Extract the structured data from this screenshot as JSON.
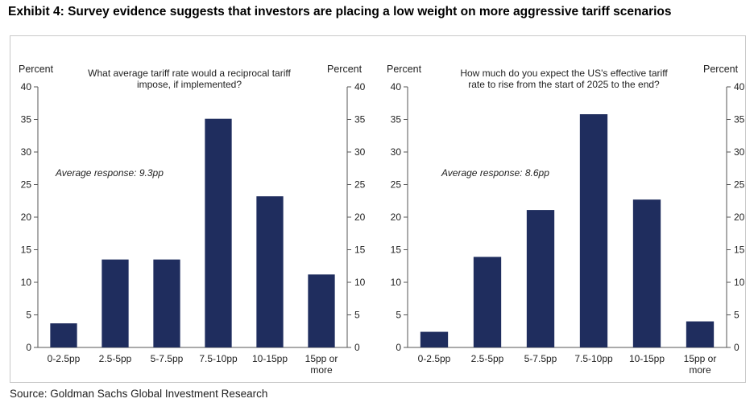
{
  "header": {
    "title": "Exhibit 4: Survey evidence suggests that investors are placing a low weight on more aggressive tariff scenarios"
  },
  "footer": {
    "source": "Source: Goldman Sachs Global Investment Research"
  },
  "colors": {
    "bar": "#1f2d5e",
    "axis": "#555555"
  },
  "chart_data": [
    {
      "type": "bar",
      "title": "What average tariff rate would a reciprocal tariff impose, if implemented?",
      "title_lines": [
        "What average tariff rate would a reciprocal tariff",
        "impose, if implemented?"
      ],
      "categories": [
        "0-2.5pp",
        "2.5-5pp",
        "5-7.5pp",
        "7.5-10pp",
        "10-15pp",
        "15pp or more"
      ],
      "category_lines": [
        [
          "0-2.5pp"
        ],
        [
          "2.5-5pp"
        ],
        [
          "5-7.5pp"
        ],
        [
          "7.5-10pp"
        ],
        [
          "10-15pp"
        ],
        [
          "15pp or",
          "more"
        ]
      ],
      "values": [
        3.7,
        13.5,
        13.5,
        35.1,
        23.2,
        11.2
      ],
      "ylabel_left": "Percent",
      "ylabel_right": "Percent",
      "ylim": [
        0,
        40
      ],
      "yticks": [
        0,
        5,
        10,
        15,
        20,
        25,
        30,
        35,
        40
      ],
      "annotation": "Average response:  9.3pp"
    },
    {
      "type": "bar",
      "title": "How much do you expect the US's effective tariff rate to rise from the start of 2025 to the end?",
      "title_lines": [
        "How much do you expect the US's effective tariff",
        "rate to rise from the start of 2025 to the end?"
      ],
      "categories": [
        "0-2.5pp",
        "2.5-5pp",
        "5-7.5pp",
        "7.5-10pp",
        "10-15pp",
        "15pp or more"
      ],
      "category_lines": [
        [
          "0-2.5pp"
        ],
        [
          "2.5-5pp"
        ],
        [
          "5-7.5pp"
        ],
        [
          "7.5-10pp"
        ],
        [
          "10-15pp"
        ],
        [
          "15pp or",
          "more"
        ]
      ],
      "values": [
        2.4,
        13.9,
        21.1,
        35.8,
        22.7,
        4.0
      ],
      "ylabel_left": "Percent",
      "ylabel_right": "Percent",
      "ylim": [
        0,
        40
      ],
      "yticks": [
        0,
        5,
        10,
        15,
        20,
        25,
        30,
        35,
        40
      ],
      "annotation": "Average response:  8.6pp"
    }
  ]
}
